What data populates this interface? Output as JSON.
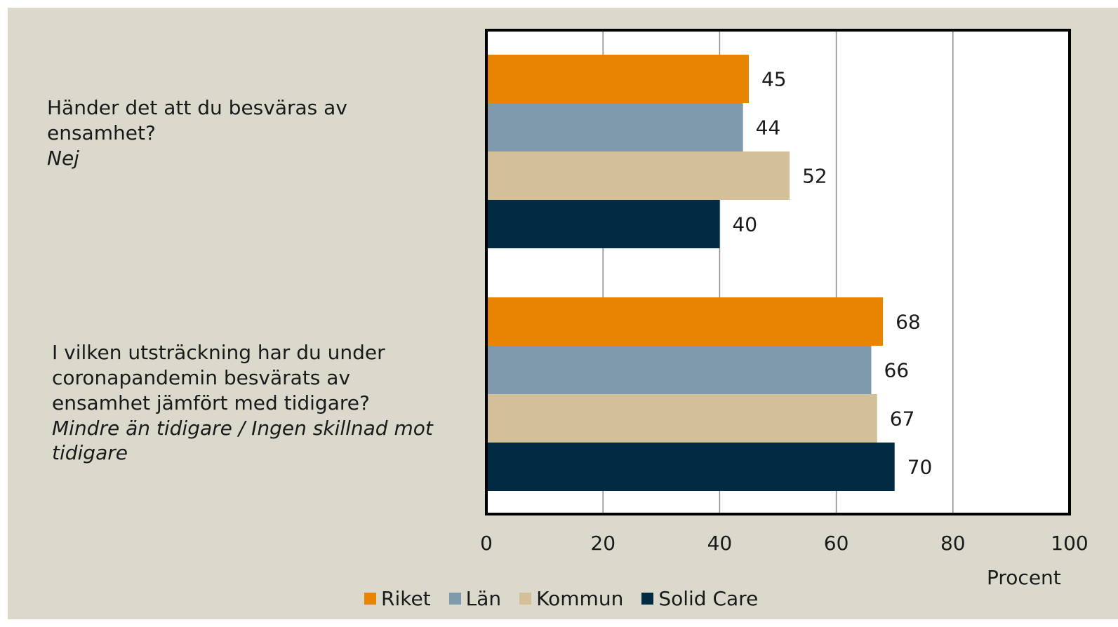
{
  "chart_data": {
    "type": "bar",
    "orientation": "horizontal",
    "categories": [
      {
        "lines": [
          "Händer det att du besväras av",
          "ensamhet?"
        ],
        "answer": "Nej"
      },
      {
        "lines": [
          "I vilken utsträckning har du under",
          "coronapandemin besvärats av",
          "ensamhet jämfört med tidigare?"
        ],
        "answer_lines": [
          "Mindre än tidigare / Ingen skillnad mot",
          "tidigare"
        ]
      }
    ],
    "series": [
      {
        "name": "Riket",
        "color": "#e88400",
        "values": [
          45,
          68
        ]
      },
      {
        "name": "Län",
        "color": "#7f9aac",
        "values": [
          44,
          66
        ]
      },
      {
        "name": "Kommun",
        "color": "#d4c098",
        "values": [
          52,
          67
        ]
      },
      {
        "name": "Solid Care",
        "color": "#002b43",
        "values": [
          40,
          70
        ]
      }
    ],
    "x_ticks": [
      "0",
      "20",
      "40",
      "60",
      "80",
      "100"
    ],
    "xlim": [
      0,
      100
    ],
    "xlabel": "Procent",
    "grid": true,
    "legend_position": "bottom",
    "data_labels": true
  }
}
